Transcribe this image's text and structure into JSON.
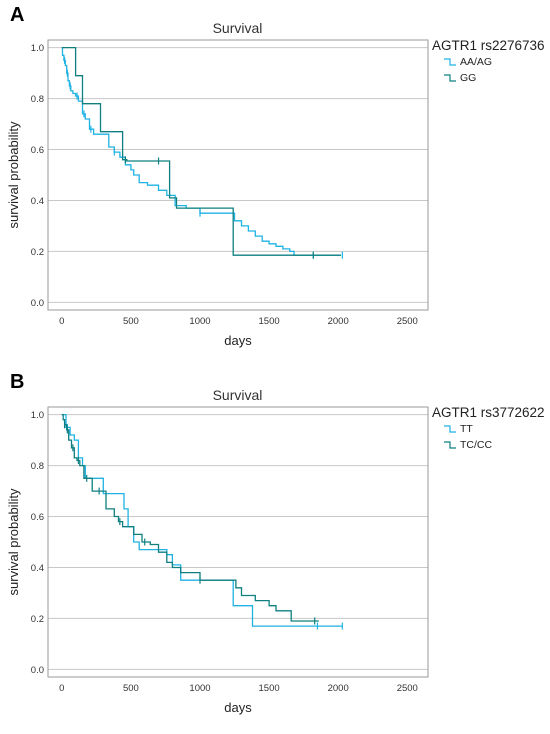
{
  "colors": {
    "series1": "#1fb2e4",
    "series2": "#0f7f80",
    "grid": "#c8c8c8",
    "frame": "#9a9a9a"
  },
  "chart_data": [
    {
      "type": "line",
      "panel_label": "A",
      "title": "Survival",
      "xlabel": "days",
      "ylabel": "survival probability",
      "xlim": [
        -100,
        2650
      ],
      "ylim": [
        -0.03,
        1.03
      ],
      "x_ticks": [
        0,
        500,
        1000,
        1500,
        2000,
        2500
      ],
      "y_ticks": [
        "0.0",
        "0.2",
        "0.4",
        "0.6",
        "0.8",
        "1.0"
      ],
      "grid": true,
      "legend_title": "AGTR1 rs2276736",
      "legend_position": "top-right",
      "series": [
        {
          "name": "AA/AG",
          "color_key": "series1",
          "x": [
            0,
            5,
            15,
            25,
            35,
            45,
            55,
            65,
            80,
            100,
            120,
            150,
            170,
            200,
            230,
            280,
            340,
            380,
            420,
            460,
            500,
            520,
            560,
            620,
            700,
            760,
            820,
            900,
            1000,
            1220,
            1250,
            1300,
            1350,
            1400,
            1450,
            1500,
            1550,
            1600,
            1650,
            1680,
            1700,
            2020
          ],
          "y": [
            1.0,
            0.97,
            0.95,
            0.93,
            0.9,
            0.87,
            0.85,
            0.83,
            0.82,
            0.81,
            0.79,
            0.74,
            0.72,
            0.68,
            0.66,
            0.66,
            0.61,
            0.59,
            0.57,
            0.54,
            0.52,
            0.5,
            0.47,
            0.46,
            0.44,
            0.42,
            0.38,
            0.37,
            0.35,
            0.35,
            0.32,
            0.3,
            0.28,
            0.26,
            0.24,
            0.23,
            0.22,
            0.21,
            0.2,
            0.185,
            0.185,
            0.185
          ],
          "censored_x": [
            20,
            40,
            60,
            110,
            160,
            210,
            380,
            1000,
            1820,
            2030
          ]
        },
        {
          "name": "GG",
          "color_key": "series2",
          "x": [
            0,
            100,
            150,
            280,
            440,
            470,
            780,
            830,
            1240,
            2020
          ],
          "y": [
            1.0,
            0.89,
            0.78,
            0.67,
            0.56,
            0.555,
            0.41,
            0.37,
            0.185,
            0.185
          ],
          "censored_x": [
            460,
            700,
            1820
          ]
        }
      ]
    },
    {
      "type": "line",
      "panel_label": "B",
      "title": "Survival",
      "xlabel": "days",
      "ylabel": "survival probability",
      "xlim": [
        -100,
        2650
      ],
      "ylim": [
        -0.03,
        1.03
      ],
      "x_ticks": [
        0,
        500,
        1000,
        1500,
        2000,
        2500
      ],
      "y_ticks": [
        "0.0",
        "0.2",
        "0.4",
        "0.6",
        "0.8",
        "1.0"
      ],
      "grid": true,
      "legend_title": "AGTR1 rs3772622",
      "legend_position": "top-right",
      "series": [
        {
          "name": "TT",
          "color_key": "series1",
          "x": [
            0,
            30,
            60,
            90,
            120,
            150,
            170,
            300,
            450,
            480,
            520,
            560,
            760,
            800,
            860,
            1040,
            1240,
            1380,
            1850,
            2030
          ],
          "y": [
            1.0,
            0.95,
            0.92,
            0.9,
            0.83,
            0.8,
            0.75,
            0.69,
            0.63,
            0.56,
            0.5,
            0.47,
            0.45,
            0.41,
            0.35,
            0.35,
            0.25,
            0.17,
            0.17,
            0.17
          ],
          "censored_x": [
            40,
            1850,
            2030
          ]
        },
        {
          "name": "TC/CC",
          "color_key": "series2",
          "x": [
            0,
            10,
            20,
            35,
            50,
            70,
            90,
            110,
            130,
            160,
            220,
            320,
            380,
            410,
            440,
            520,
            580,
            640,
            700,
            760,
            800,
            860,
            1000,
            1220,
            1260,
            1300,
            1400,
            1500,
            1550,
            1660,
            1860
          ],
          "y": [
            1.0,
            0.98,
            0.96,
            0.94,
            0.9,
            0.87,
            0.83,
            0.82,
            0.8,
            0.75,
            0.7,
            0.63,
            0.6,
            0.58,
            0.56,
            0.53,
            0.5,
            0.49,
            0.46,
            0.42,
            0.4,
            0.38,
            0.35,
            0.35,
            0.32,
            0.29,
            0.27,
            0.25,
            0.23,
            0.19,
            0.19
          ],
          "censored_x": [
            20,
            40,
            80,
            120,
            180,
            270,
            420,
            600,
            1000,
            1830
          ]
        }
      ]
    }
  ]
}
